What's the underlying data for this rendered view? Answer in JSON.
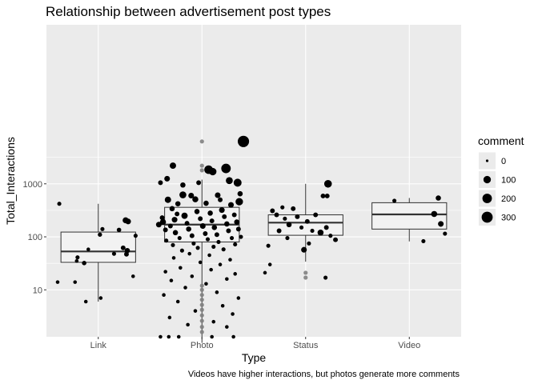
{
  "chart_data": {
    "type": "boxplot-jitter",
    "title": "Relationship between advertisement post types",
    "xlabel": "Type",
    "ylabel": "Total_Interactions",
    "caption": "Videos have higher interactions, but photos generate more comments",
    "y_scale": "log10",
    "ylim": [
      1.3,
      1000000
    ],
    "y_ticks": [
      {
        "value": 10,
        "label": "10"
      },
      {
        "value": 100,
        "label": "100"
      },
      {
        "value": 1000,
        "label": "1000"
      }
    ],
    "categories": [
      "Link",
      "Photo",
      "Status",
      "Video"
    ],
    "boxes": [
      {
        "category": "Link",
        "lower_whisker": 6,
        "q1": 33,
        "median": 53,
        "q3": 123,
        "upper_whisker": 420
      },
      {
        "category": "Photo",
        "lower_whisker": 1,
        "q1": 80,
        "median": 170,
        "q3": 360,
        "upper_whisker": 1200
      },
      {
        "category": "Status",
        "lower_whisker": 34,
        "q1": 107,
        "median": 185,
        "q3": 260,
        "upper_whisker": 1000
      },
      {
        "category": "Video",
        "lower_whisker": 82,
        "q1": 140,
        "median": 265,
        "q3": 440,
        "upper_whisker": 540
      }
    ],
    "outliers": [
      {
        "category": "Photo",
        "value": 6300
      },
      {
        "category": "Photo",
        "value": 2200
      },
      {
        "category": "Photo",
        "value": 1800
      },
      {
        "category": "Photo",
        "value": 12
      },
      {
        "category": "Photo",
        "value": 10
      },
      {
        "category": "Photo",
        "value": 8
      },
      {
        "category": "Photo",
        "value": 6.5
      },
      {
        "category": "Photo",
        "value": 5.2
      },
      {
        "category": "Photo",
        "value": 4.2
      },
      {
        "category": "Photo",
        "value": 3.3
      },
      {
        "category": "Photo",
        "value": 2.6
      },
      {
        "category": "Photo",
        "value": 2
      },
      {
        "category": "Photo",
        "value": 1.6
      },
      {
        "category": "Status",
        "value": 21
      },
      {
        "category": "Status",
        "value": 17
      }
    ],
    "points": [
      {
        "category": "Link",
        "offset": -0.47,
        "value": 420,
        "comment": 10
      },
      {
        "category": "Link",
        "offset": -0.49,
        "value": 14,
        "comment": 5
      },
      {
        "category": "Link",
        "offset": -0.28,
        "value": 14,
        "comment": 5
      },
      {
        "category": "Link",
        "offset": -0.15,
        "value": 6,
        "comment": 5
      },
      {
        "category": "Link",
        "offset": 0.02,
        "value": 110,
        "comment": 12
      },
      {
        "category": "Link",
        "offset": 0.05,
        "value": 140,
        "comment": 10
      },
      {
        "category": "Link",
        "offset": 0.25,
        "value": 135,
        "comment": 15
      },
      {
        "category": "Link",
        "offset": 0.33,
        "value": 205,
        "comment": 50
      },
      {
        "category": "Link",
        "offset": 0.36,
        "value": 195,
        "comment": 40
      },
      {
        "category": "Link",
        "offset": 0.3,
        "value": 62,
        "comment": 20
      },
      {
        "category": "Link",
        "offset": 0.35,
        "value": 55,
        "comment": 30
      },
      {
        "category": "Link",
        "offset": 0.34,
        "value": 47,
        "comment": 20
      },
      {
        "category": "Link",
        "offset": 0.19,
        "value": 48,
        "comment": 10
      },
      {
        "category": "Link",
        "offset": 0.45,
        "value": 105,
        "comment": 10
      },
      {
        "category": "Link",
        "offset": 0.42,
        "value": 18,
        "comment": 5
      },
      {
        "category": "Link",
        "offset": 0.03,
        "value": 7,
        "comment": 5
      },
      {
        "category": "Link",
        "offset": -0.17,
        "value": 32,
        "comment": 15
      },
      {
        "category": "Link",
        "offset": -0.25,
        "value": 41,
        "comment": 10
      },
      {
        "category": "Link",
        "offset": -0.26,
        "value": 35,
        "comment": 5
      },
      {
        "category": "Link",
        "offset": -0.12,
        "value": 58,
        "comment": 5
      },
      {
        "category": "Photo",
        "offset": 0.5,
        "value": 6300,
        "comment": 320
      },
      {
        "category": "Photo",
        "offset": -0.35,
        "value": 2200,
        "comment": 60
      },
      {
        "category": "Photo",
        "offset": 0.08,
        "value": 1850,
        "comment": 150
      },
      {
        "category": "Photo",
        "offset": 0.29,
        "value": 1950,
        "comment": 200
      },
      {
        "category": "Photo",
        "offset": 0.13,
        "value": 1700,
        "comment": 100
      },
      {
        "category": "Photo",
        "offset": -0.42,
        "value": 1250,
        "comment": 40
      },
      {
        "category": "Photo",
        "offset": 0.33,
        "value": 1150,
        "comment": 80
      },
      {
        "category": "Photo",
        "offset": -0.5,
        "value": 1050,
        "comment": 20
      },
      {
        "category": "Photo",
        "offset": -0.23,
        "value": 950,
        "comment": 30
      },
      {
        "category": "Photo",
        "offset": -0.04,
        "value": 1050,
        "comment": 20
      },
      {
        "category": "Photo",
        "offset": 0.43,
        "value": 1050,
        "comment": 120
      },
      {
        "category": "Photo",
        "offset": -0.23,
        "value": 620,
        "comment": 80
      },
      {
        "category": "Photo",
        "offset": -0.13,
        "value": 600,
        "comment": 40
      },
      {
        "category": "Photo",
        "offset": 0.19,
        "value": 610,
        "comment": 40
      },
      {
        "category": "Photo",
        "offset": 0.46,
        "value": 650,
        "comment": 30
      },
      {
        "category": "Photo",
        "offset": -0.41,
        "value": 500,
        "comment": 60
      },
      {
        "category": "Photo",
        "offset": -0.08,
        "value": 510,
        "comment": 50
      },
      {
        "category": "Photo",
        "offset": 0.22,
        "value": 500,
        "comment": 20
      },
      {
        "category": "Photo",
        "offset": 0.45,
        "value": 460,
        "comment": 100
      },
      {
        "category": "Photo",
        "offset": -0.29,
        "value": 420,
        "comment": 30
      },
      {
        "category": "Photo",
        "offset": 0.05,
        "value": 430,
        "comment": 30
      },
      {
        "category": "Photo",
        "offset": 0.35,
        "value": 400,
        "comment": 40
      },
      {
        "category": "Photo",
        "offset": -0.48,
        "value": 230,
        "comment": 20
      },
      {
        "category": "Photo",
        "offset": -0.47,
        "value": 190,
        "comment": 50
      },
      {
        "category": "Photo",
        "offset": -0.52,
        "value": 170,
        "comment": 40
      },
      {
        "category": "Photo",
        "offset": -0.44,
        "value": 135,
        "comment": 20
      },
      {
        "category": "Photo",
        "offset": -0.43,
        "value": 85,
        "comment": 10
      },
      {
        "category": "Photo",
        "offset": -0.36,
        "value": 340,
        "comment": 30
      },
      {
        "category": "Photo",
        "offset": -0.3,
        "value": 270,
        "comment": 20
      },
      {
        "category": "Photo",
        "offset": -0.33,
        "value": 210,
        "comment": 40
      },
      {
        "category": "Photo",
        "offset": -0.38,
        "value": 160,
        "comment": 20
      },
      {
        "category": "Photo",
        "offset": -0.32,
        "value": 120,
        "comment": 30
      },
      {
        "category": "Photo",
        "offset": -0.27,
        "value": 95,
        "comment": 10
      },
      {
        "category": "Photo",
        "offset": -0.35,
        "value": 70,
        "comment": 10
      },
      {
        "category": "Photo",
        "offset": -0.24,
        "value": 55,
        "comment": 10
      },
      {
        "category": "Photo",
        "offset": -0.21,
        "value": 250,
        "comment": 60
      },
      {
        "category": "Photo",
        "offset": -0.18,
        "value": 180,
        "comment": 20
      },
      {
        "category": "Photo",
        "offset": -0.16,
        "value": 140,
        "comment": 30
      },
      {
        "category": "Photo",
        "offset": -0.12,
        "value": 105,
        "comment": 20
      },
      {
        "category": "Photo",
        "offset": -0.1,
        "value": 75,
        "comment": 10
      },
      {
        "category": "Photo",
        "offset": -0.06,
        "value": 300,
        "comment": 30
      },
      {
        "category": "Photo",
        "offset": -0.02,
        "value": 220,
        "comment": 20
      },
      {
        "category": "Photo",
        "offset": 0.01,
        "value": 160,
        "comment": 40
      },
      {
        "category": "Photo",
        "offset": 0.04,
        "value": 115,
        "comment": 20
      },
      {
        "category": "Photo",
        "offset": 0.07,
        "value": 90,
        "comment": 10
      },
      {
        "category": "Photo",
        "offset": 0.1,
        "value": 280,
        "comment": 30
      },
      {
        "category": "Photo",
        "offset": 0.12,
        "value": 200,
        "comment": 20
      },
      {
        "category": "Photo",
        "offset": 0.15,
        "value": 150,
        "comment": 30
      },
      {
        "category": "Photo",
        "offset": 0.18,
        "value": 110,
        "comment": 20
      },
      {
        "category": "Photo",
        "offset": 0.2,
        "value": 80,
        "comment": 10
      },
      {
        "category": "Photo",
        "offset": 0.24,
        "value": 320,
        "comment": 40
      },
      {
        "category": "Photo",
        "offset": 0.27,
        "value": 240,
        "comment": 20
      },
      {
        "category": "Photo",
        "offset": 0.3,
        "value": 175,
        "comment": 30
      },
      {
        "category": "Photo",
        "offset": 0.32,
        "value": 130,
        "comment": 20
      },
      {
        "category": "Photo",
        "offset": 0.36,
        "value": 95,
        "comment": 10
      },
      {
        "category": "Photo",
        "offset": 0.39,
        "value": 260,
        "comment": 20
      },
      {
        "category": "Photo",
        "offset": 0.42,
        "value": 190,
        "comment": 30
      },
      {
        "category": "Photo",
        "offset": 0.44,
        "value": 140,
        "comment": 20
      },
      {
        "category": "Photo",
        "offset": 0.47,
        "value": 100,
        "comment": 10
      },
      {
        "category": "Photo",
        "offset": 0.4,
        "value": 72,
        "comment": 10
      },
      {
        "category": "Photo",
        "offset": 0.14,
        "value": 65,
        "comment": 10
      },
      {
        "category": "Photo",
        "offset": -0.05,
        "value": 62,
        "comment": 10
      },
      {
        "category": "Photo",
        "offset": 0.26,
        "value": 58,
        "comment": 10
      },
      {
        "category": "Photo",
        "offset": -0.15,
        "value": 48,
        "comment": 5
      },
      {
        "category": "Photo",
        "offset": 0.09,
        "value": 45,
        "comment": 5
      },
      {
        "category": "Photo",
        "offset": -0.34,
        "value": 40,
        "comment": 5
      },
      {
        "category": "Photo",
        "offset": 0.34,
        "value": 37,
        "comment": 5
      },
      {
        "category": "Photo",
        "offset": -0.02,
        "value": 33,
        "comment": 5
      },
      {
        "category": "Photo",
        "offset": 0.22,
        "value": 30,
        "comment": 5
      },
      {
        "category": "Photo",
        "offset": -0.26,
        "value": 26,
        "comment": 5
      },
      {
        "category": "Photo",
        "offset": 0.11,
        "value": 24,
        "comment": 5
      },
      {
        "category": "Photo",
        "offset": -0.44,
        "value": 22,
        "comment": 5
      },
      {
        "category": "Photo",
        "offset": 0.4,
        "value": 20,
        "comment": 5
      },
      {
        "category": "Photo",
        "offset": -0.12,
        "value": 18,
        "comment": 5
      },
      {
        "category": "Photo",
        "offset": 0.3,
        "value": 16,
        "comment": 5
      },
      {
        "category": "Photo",
        "offset": -0.37,
        "value": 15,
        "comment": 5
      },
      {
        "category": "Photo",
        "offset": 0.05,
        "value": 13,
        "comment": 5
      },
      {
        "category": "Photo",
        "offset": -0.2,
        "value": 11,
        "comment": 5
      },
      {
        "category": "Photo",
        "offset": 0.18,
        "value": 9,
        "comment": 5
      },
      {
        "category": "Photo",
        "offset": -0.46,
        "value": 8,
        "comment": 5
      },
      {
        "category": "Photo",
        "offset": 0.44,
        "value": 7,
        "comment": 5
      },
      {
        "category": "Photo",
        "offset": -0.29,
        "value": 6,
        "comment": 5
      },
      {
        "category": "Photo",
        "offset": 0.25,
        "value": 5,
        "comment": 5
      },
      {
        "category": "Photo",
        "offset": -0.08,
        "value": 4,
        "comment": 5
      },
      {
        "category": "Photo",
        "offset": 0.37,
        "value": 3.5,
        "comment": 5
      },
      {
        "category": "Photo",
        "offset": -0.39,
        "value": 3,
        "comment": 5
      },
      {
        "category": "Photo",
        "offset": 0.14,
        "value": 2.5,
        "comment": 5
      },
      {
        "category": "Photo",
        "offset": -0.17,
        "value": 2.2,
        "comment": 5
      },
      {
        "category": "Photo",
        "offset": 0.3,
        "value": 2,
        "comment": 5
      },
      {
        "category": "Photo",
        "offset": -0.5,
        "value": 1.3,
        "comment": 5
      },
      {
        "category": "Photo",
        "offset": -0.4,
        "value": 1.3,
        "comment": 5
      },
      {
        "category": "Photo",
        "offset": -0.28,
        "value": 1.3,
        "comment": 5
      },
      {
        "category": "Photo",
        "offset": 0.12,
        "value": 1.3,
        "comment": 5
      },
      {
        "category": "Photo",
        "offset": 0.38,
        "value": 1.3,
        "comment": 5
      },
      {
        "category": "Status",
        "offset": -0.49,
        "value": 21,
        "comment": 5
      },
      {
        "category": "Status",
        "offset": -0.43,
        "value": 30,
        "comment": 5
      },
      {
        "category": "Status",
        "offset": -0.45,
        "value": 68,
        "comment": 10
      },
      {
        "category": "Status",
        "offset": -0.4,
        "value": 310,
        "comment": 20
      },
      {
        "category": "Status",
        "offset": -0.35,
        "value": 260,
        "comment": 20
      },
      {
        "category": "Status",
        "offset": -0.15,
        "value": 340,
        "comment": 20
      },
      {
        "category": "Status",
        "offset": -0.32,
        "value": 130,
        "comment": 20
      },
      {
        "category": "Status",
        "offset": -0.25,
        "value": 220,
        "comment": 10
      },
      {
        "category": "Status",
        "offset": -0.2,
        "value": 170,
        "comment": 30
      },
      {
        "category": "Status",
        "offset": -0.1,
        "value": 240,
        "comment": 20
      },
      {
        "category": "Status",
        "offset": -0.05,
        "value": 150,
        "comment": 10
      },
      {
        "category": "Status",
        "offset": 0.02,
        "value": 195,
        "comment": 20
      },
      {
        "category": "Status",
        "offset": 0.08,
        "value": 130,
        "comment": 10
      },
      {
        "category": "Status",
        "offset": -0.22,
        "value": 95,
        "comment": 10
      },
      {
        "category": "Status",
        "offset": -0.02,
        "value": 57,
        "comment": 40
      },
      {
        "category": "Status",
        "offset": 0.12,
        "value": 260,
        "comment": 20
      },
      {
        "category": "Status",
        "offset": 0.18,
        "value": 120,
        "comment": 50
      },
      {
        "category": "Status",
        "offset": 0.25,
        "value": 150,
        "comment": 20
      },
      {
        "category": "Status",
        "offset": 0.3,
        "value": 105,
        "comment": 10
      },
      {
        "category": "Status",
        "offset": 0.36,
        "value": 88,
        "comment": 20
      },
      {
        "category": "Status",
        "offset": 0.21,
        "value": 590,
        "comment": 20
      },
      {
        "category": "Status",
        "offset": 0.26,
        "value": 590,
        "comment": 20
      },
      {
        "category": "Status",
        "offset": 0.27,
        "value": 1000,
        "comment": 110
      },
      {
        "category": "Status",
        "offset": 0.24,
        "value": 17,
        "comment": 10
      },
      {
        "category": "Status",
        "offset": 0.04,
        "value": 75,
        "comment": 10
      },
      {
        "category": "Status",
        "offset": -0.28,
        "value": 360,
        "comment": 10
      },
      {
        "category": "Video",
        "offset": -0.18,
        "value": 480,
        "comment": 10
      },
      {
        "category": "Video",
        "offset": 0.35,
        "value": 540,
        "comment": 30
      },
      {
        "category": "Video",
        "offset": 0.3,
        "value": 270,
        "comment": 50
      },
      {
        "category": "Video",
        "offset": 0.38,
        "value": 175,
        "comment": 40
      },
      {
        "category": "Video",
        "offset": 0.43,
        "value": 115,
        "comment": 10
      },
      {
        "category": "Video",
        "offset": 0.17,
        "value": 83,
        "comment": 10
      }
    ],
    "legend": {
      "title": "comment",
      "placement": "right",
      "entries": [
        {
          "label": "0",
          "value": 0
        },
        {
          "label": "100",
          "value": 100
        },
        {
          "label": "200",
          "value": 200
        },
        {
          "label": "300",
          "value": 300
        }
      ]
    },
    "colors": {
      "panel_background": "#ebebeb",
      "gridline": "#ffffff",
      "box_fill": "#f2f2f2",
      "box_stroke": "#333333",
      "point": "#000000",
      "outlier": "#7f7f7f"
    }
  }
}
